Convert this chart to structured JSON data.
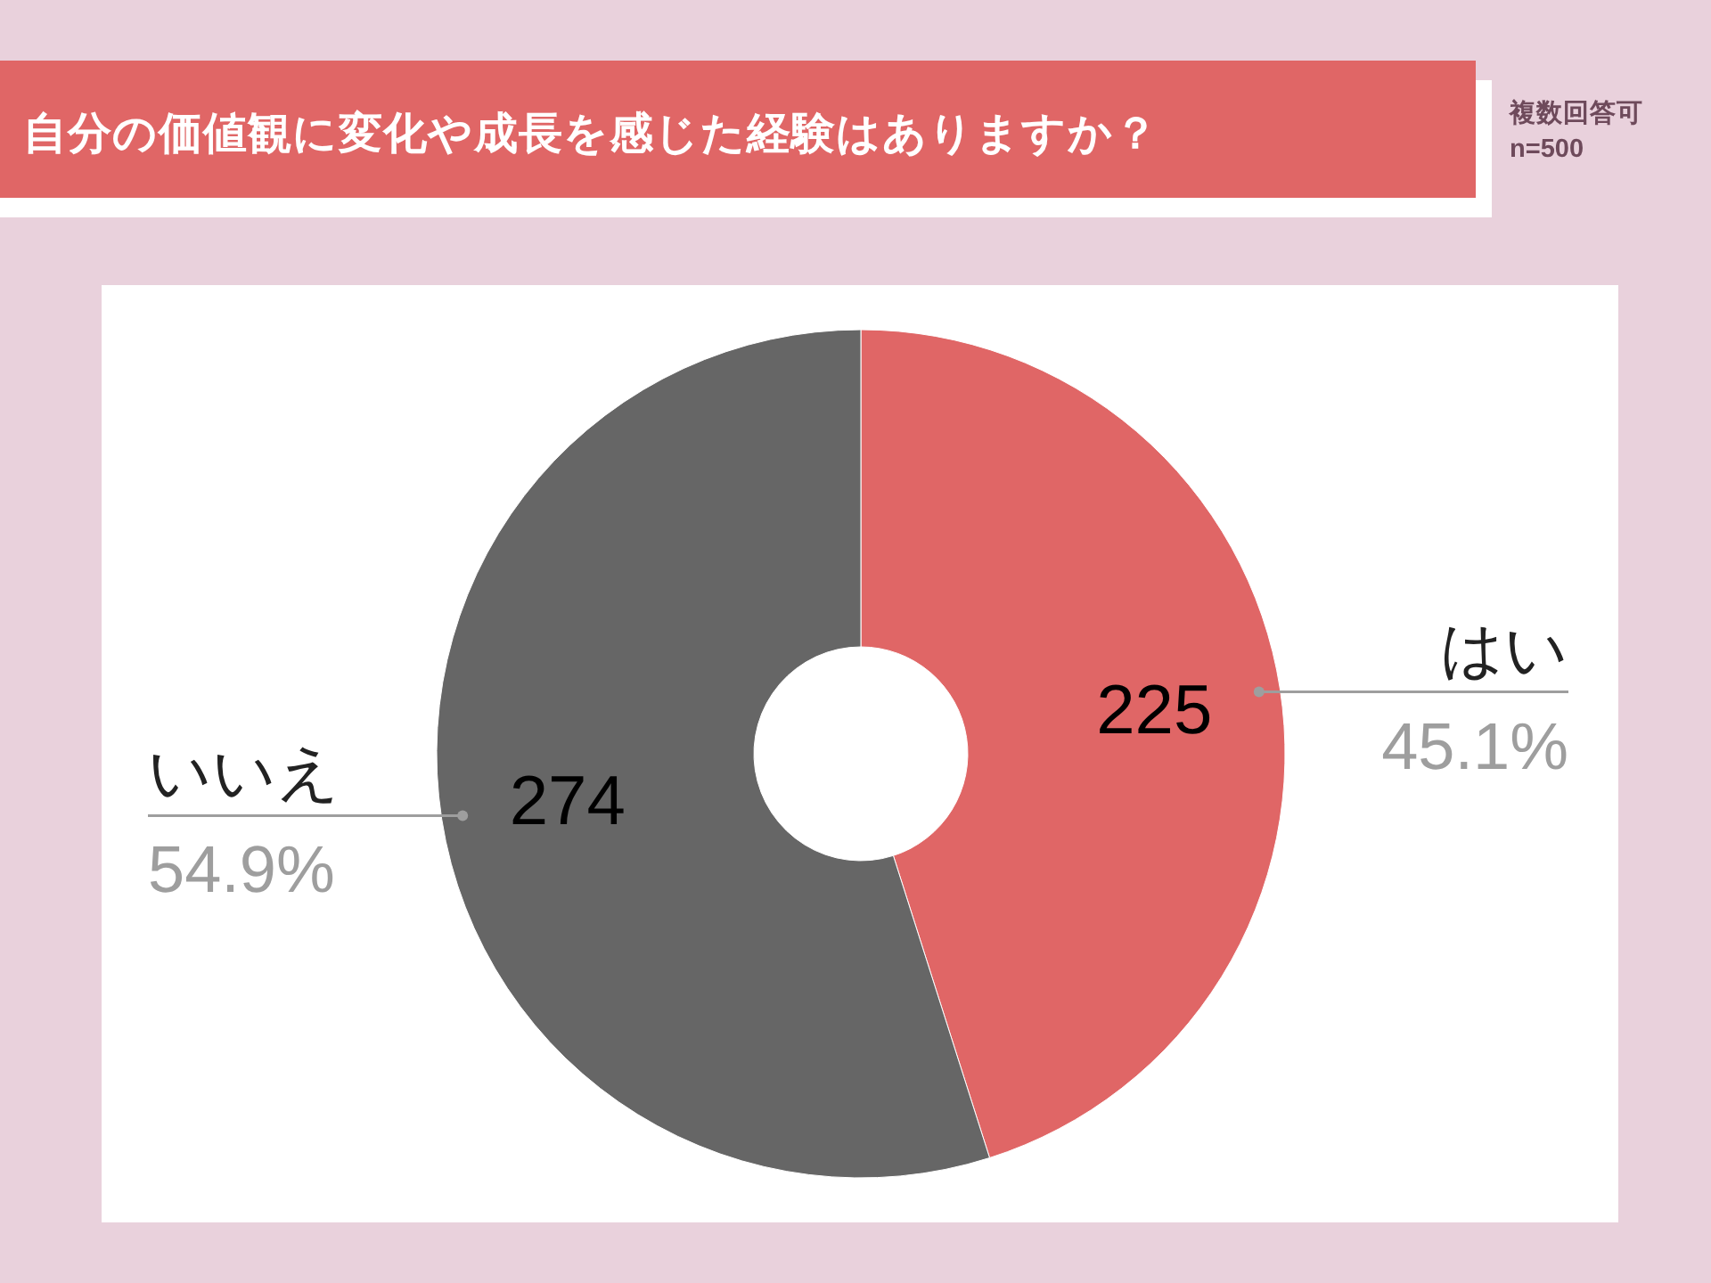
{
  "chart_data": {
    "type": "donut",
    "title": "自分の価値観に変化や成長を感じた経験はありますか？",
    "categories": [
      "はい",
      "いいえ"
    ],
    "values": [
      225,
      274
    ],
    "colors": [
      "#e06666",
      "#666666"
    ],
    "data_labels": true,
    "annotations": [
      "複数回答可",
      "n=500",
      {
        "text": "45.1%",
        "x": "はい"
      },
      {
        "text": "54.9%",
        "x": "いいえ"
      }
    ]
  }
}
